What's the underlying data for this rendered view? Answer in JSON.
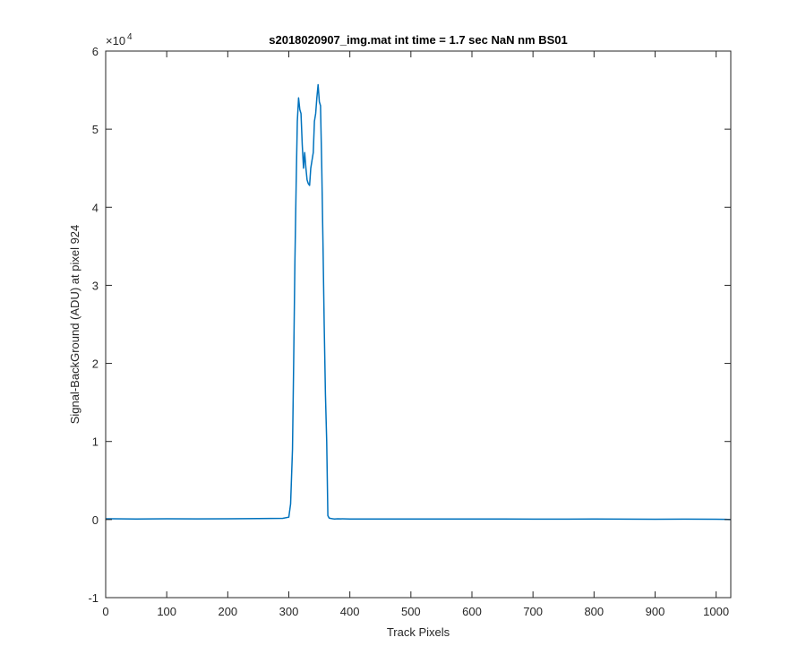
{
  "chart_data": {
    "type": "line",
    "title": "s2018020907_img.mat int time = 1.7 sec  NaN nm BS01",
    "xlabel": "Track Pixels",
    "ylabel": "Signal-BackGround (ADU) at pixel 924",
    "xlim": [
      0,
      1024
    ],
    "ylim": [
      -10000,
      60000
    ],
    "x_ticks": [
      0,
      100,
      200,
      300,
      400,
      500,
      600,
      700,
      800,
      900,
      1000
    ],
    "x_tick_labels": [
      "0",
      "100",
      "200",
      "300",
      "400",
      "500",
      "600",
      "700",
      "800",
      "900",
      "1000"
    ],
    "y_ticks": [
      -10000,
      0,
      10000,
      20000,
      30000,
      40000,
      50000,
      60000
    ],
    "y_tick_labels": [
      "-1",
      "0",
      "1",
      "2",
      "3",
      "4",
      "5",
      "6"
    ],
    "y_exponent_base": "×10",
    "y_exponent_power": "4",
    "grid": false,
    "series": [
      {
        "color": "#0072BD",
        "x": [
          0,
          50,
          100,
          150,
          200,
          250,
          290,
          300,
          303,
          306,
          308,
          310,
          312,
          314,
          316,
          318,
          320,
          322,
          324,
          326,
          328,
          330,
          332,
          334,
          336,
          338,
          340,
          342,
          344,
          346,
          348,
          350,
          352,
          354,
          356,
          358,
          360,
          362,
          364,
          366,
          368,
          370,
          372,
          375,
          380,
          400,
          450,
          500,
          550,
          600,
          650,
          700,
          750,
          800,
          850,
          900,
          950,
          1000,
          1015,
          1024
        ],
        "y": [
          100,
          80,
          100,
          90,
          100,
          120,
          150,
          300,
          2000,
          9000,
          20000,
          33000,
          43000,
          51000,
          54000,
          52500,
          52000,
          48000,
          45000,
          47000,
          45000,
          43500,
          43000,
          42800,
          45000,
          46000,
          47000,
          51000,
          52000,
          54000,
          55700,
          53500,
          53000,
          45000,
          35000,
          25000,
          16000,
          10000,
          500,
          200,
          150,
          120,
          100,
          80,
          100,
          80,
          80,
          70,
          60,
          70,
          60,
          50,
          50,
          60,
          50,
          40,
          50,
          40,
          30,
          0
        ]
      }
    ]
  }
}
